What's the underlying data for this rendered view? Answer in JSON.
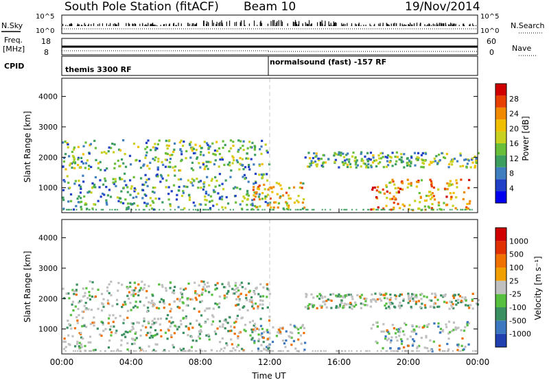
{
  "header": {
    "station": "South Pole Station (fitACF)",
    "beam": "Beam 10",
    "date": "19/Nov/2014"
  },
  "nsky_panel": {
    "left_label": "N.Sky",
    "right_label": "N.Search",
    "ticks": [
      "10^5",
      "10^0"
    ]
  },
  "freq_panel": {
    "left_label_1": "Freq.",
    "left_label_2": "[MHz]",
    "left_ticks": [
      "18",
      "8"
    ],
    "right_label": "Nave",
    "right_ticks": [
      "60",
      "0"
    ]
  },
  "cpid_panel": {
    "label": "CPID",
    "mode_1": "themis 3300 RF",
    "mode_2": "normalsound (fast) -157 RF",
    "mode_change_hour": 12
  },
  "chart_data": [
    {
      "type": "heatmap",
      "name": "power",
      "ylabel": "Slant Range [km]",
      "ylim": [
        180,
        4600
      ],
      "yticks": [
        "1000",
        "2000",
        "3000",
        "4000"
      ],
      "xlim": [
        0,
        24
      ],
      "colorbar": {
        "label": "Power [dB]",
        "ticks": [
          "4",
          "8",
          "12",
          "16",
          "20",
          "24",
          "28"
        ],
        "colors": [
          "#0000ee",
          "#2040c8",
          "#3f7fbf",
          "#3d9f5f",
          "#6abf3a",
          "#c8d020",
          "#f0c000",
          "#f08a00",
          "#e84000",
          "#d00000"
        ]
      },
      "echo_bands": [
        {
          "t0": 0.0,
          "t1": 12.0,
          "r0": 1600,
          "r1": 2600,
          "level": 0.4
        },
        {
          "t0": 0.0,
          "t1": 12.0,
          "r0": 300,
          "r1": 1500,
          "level": 0.35
        },
        {
          "t0": 11.0,
          "t1": 14.0,
          "r0": 300,
          "r1": 1200,
          "level": 0.6
        },
        {
          "t0": 14.0,
          "t1": 24.0,
          "r0": 1700,
          "r1": 2200,
          "level": 0.4
        },
        {
          "t0": 17.8,
          "t1": 23.5,
          "r0": 300,
          "r1": 1300,
          "level": 0.7
        }
      ]
    },
    {
      "type": "heatmap",
      "name": "velocity",
      "ylabel": "Slant Range [km]",
      "ylim": [
        180,
        4600
      ],
      "yticks": [
        "1000",
        "2000",
        "3000",
        "4000"
      ],
      "xlim": [
        0,
        24
      ],
      "xticks": [
        "00:00",
        "04:00",
        "08:00",
        "12:00",
        "16:00",
        "20:00",
        "00:00"
      ],
      "xlabel": "Time UT",
      "colorbar": {
        "label": "Velocity [m s⁻¹]",
        "ticks": [
          "1000",
          "500",
          "100",
          "25",
          "-25",
          "-100",
          "-500",
          "-1000"
        ],
        "colors": [
          "#2040b0",
          "#3c78c0",
          "#3a9060",
          "#58c040",
          "#c0c0c0",
          "#f0a000",
          "#f07000",
          "#e03000",
          "#d00000"
        ]
      }
    }
  ]
}
